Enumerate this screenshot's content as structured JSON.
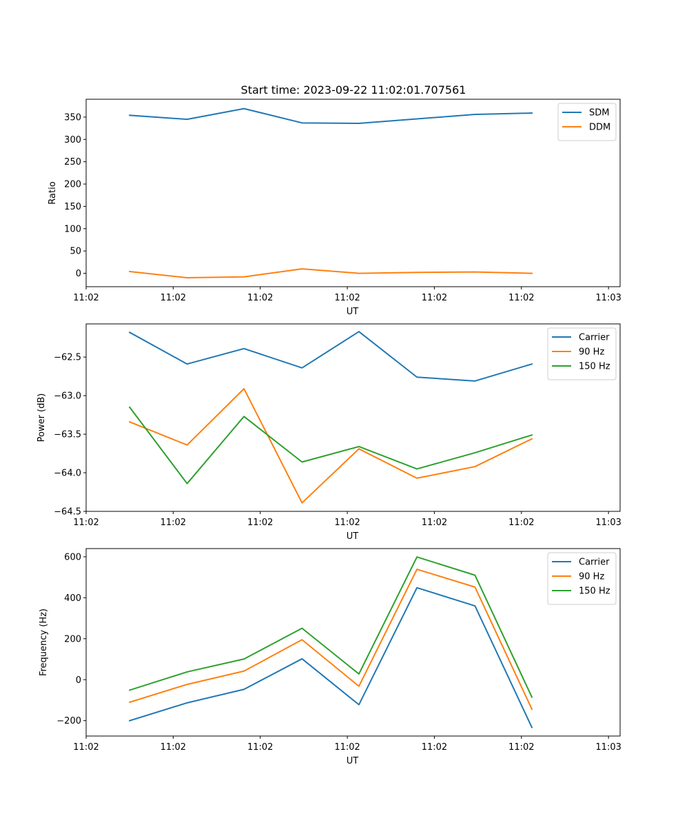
{
  "figure_title": "Start time: 2023-09-22 11:02:01.707561",
  "chart_data": [
    {
      "type": "line",
      "ylabel": "Ratio",
      "xlabel": "UT",
      "xlim": [
        0,
        9.2
      ],
      "x_ticks": [
        0,
        1.5,
        3,
        4.5,
        6,
        7.5,
        9
      ],
      "x_tick_labels": [
        "11:02",
        "11:02",
        "11:02",
        "11:02",
        "11:02",
        "11:02",
        "11:03"
      ],
      "ylim": [
        -30,
        390
      ],
      "y_ticks": [
        0,
        50,
        100,
        150,
        200,
        250,
        300,
        350
      ],
      "y_tick_labels": [
        "0",
        "50",
        "100",
        "150",
        "200",
        "250",
        "300",
        "350"
      ],
      "legend_position": "top-right",
      "x": [
        0.75,
        1.74,
        2.72,
        3.72,
        4.7,
        5.7,
        6.7,
        7.68
      ],
      "series": [
        {
          "name": "SDM",
          "color": "#1f77b4",
          "values": [
            354,
            345,
            369,
            337,
            336,
            346,
            356,
            359
          ]
        },
        {
          "name": "DDM",
          "color": "#ff7f0e",
          "values": [
            4,
            -10,
            -8,
            10,
            0,
            2,
            3,
            0
          ]
        }
      ]
    },
    {
      "type": "line",
      "ylabel": "Power (dB)",
      "xlabel": "UT",
      "xlim": [
        0,
        9.2
      ],
      "x_ticks": [
        0,
        1.5,
        3,
        4.5,
        6,
        7.5,
        9
      ],
      "x_tick_labels": [
        "11:02",
        "11:02",
        "11:02",
        "11:02",
        "11:02",
        "11:02",
        "11:03"
      ],
      "ylim": [
        -64.5,
        -62.07
      ],
      "y_ticks": [
        -64.5,
        -64.0,
        -63.5,
        -63.0,
        -62.5
      ],
      "y_tick_labels": [
        "−64.5",
        "−64.0",
        "−63.5",
        "−63.0",
        "−62.5"
      ],
      "legend_position": "top-right",
      "x": [
        0.75,
        1.74,
        2.72,
        3.72,
        4.7,
        5.7,
        6.7,
        7.68
      ],
      "series": [
        {
          "name": "Carrier",
          "color": "#1f77b4",
          "values": [
            -62.18,
            -62.59,
            -62.39,
            -62.64,
            -62.17,
            -62.76,
            -62.81,
            -62.59
          ]
        },
        {
          "name": "90 Hz",
          "color": "#ff7f0e",
          "values": [
            -63.34,
            -63.64,
            -62.91,
            -64.39,
            -63.69,
            -64.07,
            -63.92,
            -63.56
          ]
        },
        {
          "name": "150 Hz",
          "color": "#2ca02c",
          "values": [
            -63.15,
            -64.14,
            -63.27,
            -63.86,
            -63.66,
            -63.95,
            -63.74,
            -63.51
          ]
        }
      ]
    },
    {
      "type": "line",
      "ylabel": "Frequency (Hz)",
      "xlabel": "UT",
      "xlim": [
        0,
        9.2
      ],
      "x_ticks": [
        0,
        1.5,
        3,
        4.5,
        6,
        7.5,
        9
      ],
      "x_tick_labels": [
        "11:02",
        "11:02",
        "11:02",
        "11:02",
        "11:02",
        "11:02",
        "11:03"
      ],
      "ylim": [
        -275,
        640
      ],
      "y_ticks": [
        -200,
        0,
        200,
        400,
        600
      ],
      "y_tick_labels": [
        "−200",
        "0",
        "200",
        "400",
        "600"
      ],
      "legend_position": "top-right",
      "x": [
        0.75,
        1.74,
        2.72,
        3.72,
        4.7,
        5.7,
        6.7,
        7.68
      ],
      "series": [
        {
          "name": "Carrier",
          "color": "#1f77b4",
          "values": [
            -200,
            -113,
            -47,
            102,
            -122,
            449,
            360,
            -233
          ]
        },
        {
          "name": "90 Hz",
          "color": "#ff7f0e",
          "values": [
            -110,
            -23,
            42,
            195,
            -32,
            539,
            452,
            -144
          ]
        },
        {
          "name": "150 Hz",
          "color": "#2ca02c",
          "values": [
            -51,
            38,
            101,
            251,
            28,
            599,
            510,
            -85
          ]
        }
      ]
    }
  ]
}
